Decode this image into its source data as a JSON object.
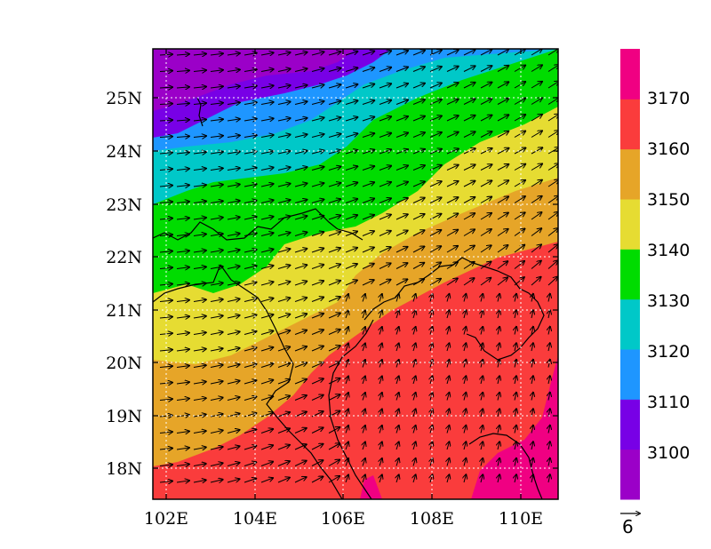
{
  "map": {
    "longitude_ticks": [
      "102E",
      "104E",
      "106E",
      "108E",
      "110E"
    ],
    "latitude_ticks": [
      "25N",
      "24N",
      "23N",
      "22N",
      "21N",
      "20N",
      "19N",
      "18N"
    ],
    "lon_range": [
      101.5,
      110.9
    ],
    "lat_range": [
      17.4,
      25.9
    ],
    "gridlines": "dotted white",
    "field": "geopotential height (contoured)",
    "vectors": "wind arrows"
  },
  "colorbar": {
    "levels": [
      "3100",
      "3110",
      "3120",
      "3130",
      "3140",
      "3150",
      "3160",
      "3170"
    ],
    "colors": [
      "#9b00c8",
      "#7800e6",
      "#1e96ff",
      "#00c8c8",
      "#00dc00",
      "#e6dc32",
      "#e6a528",
      "#fa3c3c",
      "#f00082"
    ]
  },
  "reference_vector": {
    "label": "6"
  }
}
